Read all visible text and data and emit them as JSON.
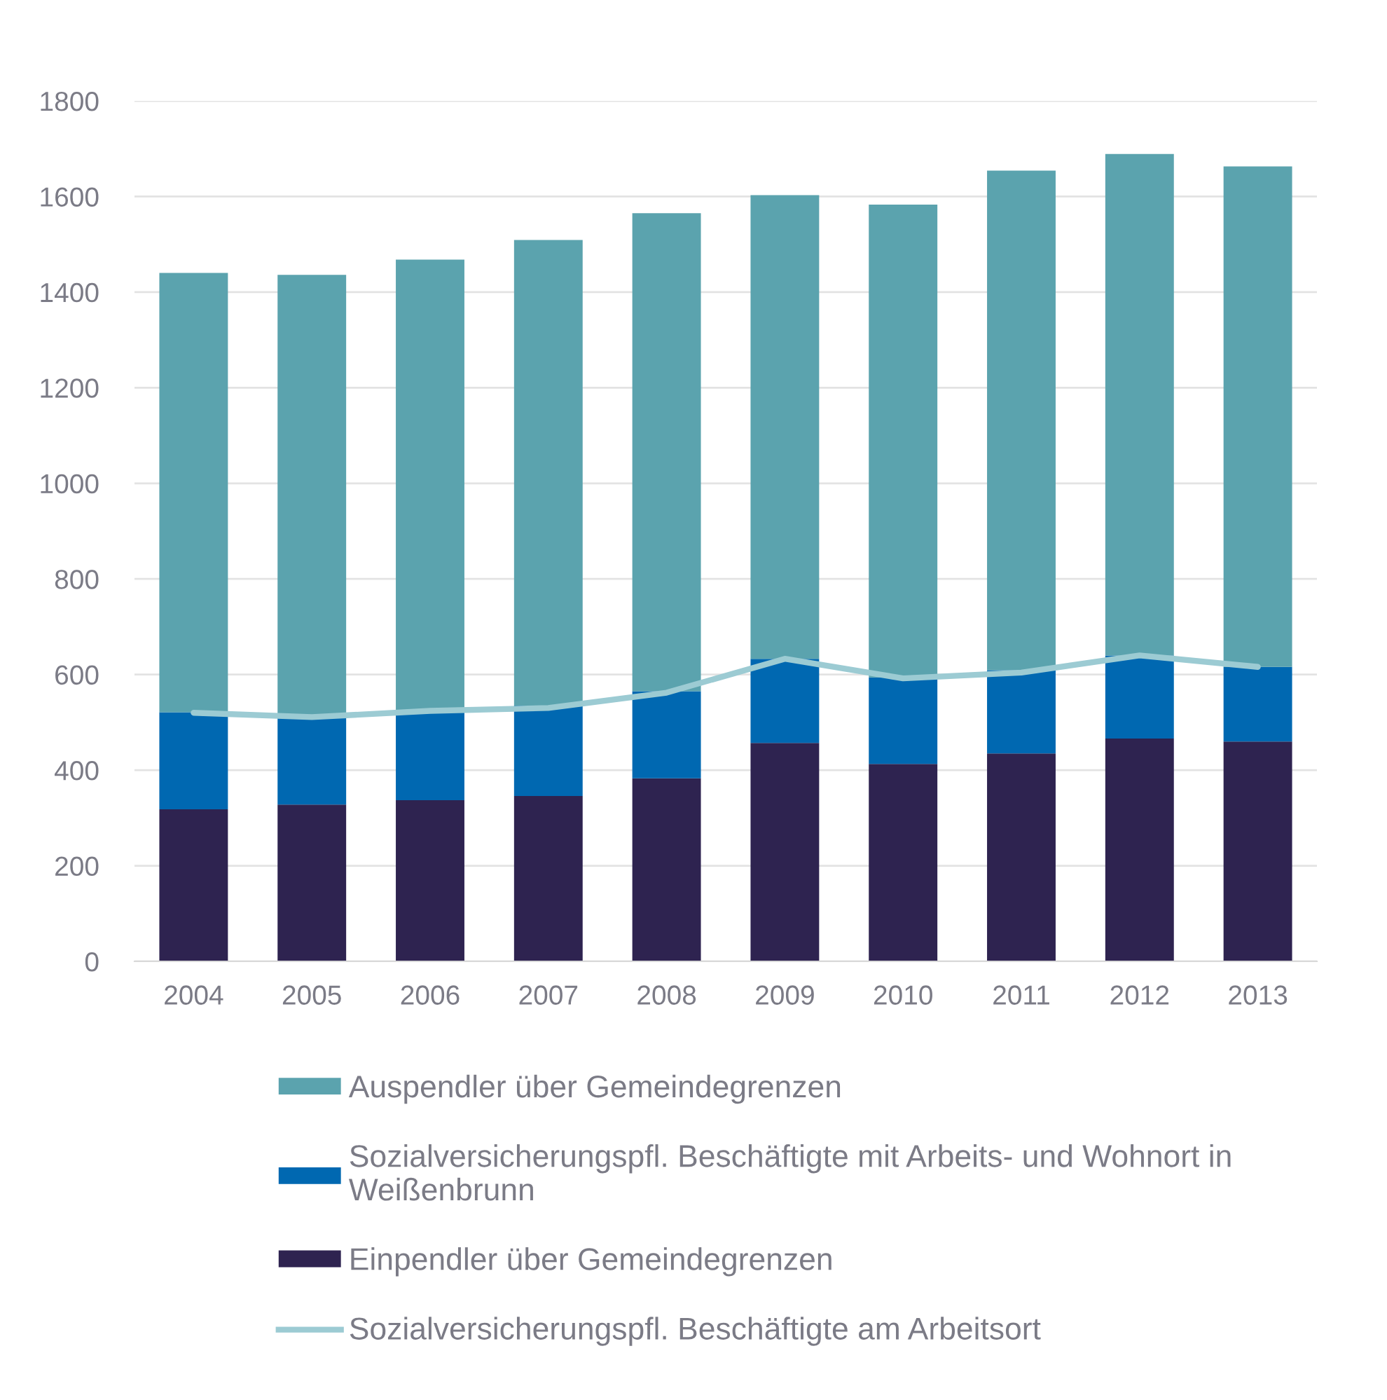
{
  "chart_data": {
    "type": "bar",
    "stacked": true,
    "categories": [
      "2004",
      "2005",
      "2006",
      "2007",
      "2008",
      "2009",
      "2010",
      "2011",
      "2012",
      "2013"
    ],
    "series": [
      {
        "name": "Einpendler über Gemeindegrenzen",
        "color": "#2e2350",
        "values": [
          318,
          328,
          337,
          346,
          383,
          457,
          413,
          435,
          466,
          460
        ]
      },
      {
        "name": "Sozialversicherungspfl. Beschäftigte mit Arbeits- und Wohnort in Weißenbrunn",
        "color": "#0068b1",
        "values": [
          203,
          184,
          189,
          189,
          182,
          176,
          181,
          174,
          174,
          156
        ]
      },
      {
        "name": "Auspendler über Gemeindegrenzen",
        "color": "#5ba3ae",
        "values": [
          919,
          924,
          942,
          974,
          1000,
          970,
          989,
          1045,
          1049,
          1047
        ]
      },
      {
        "name": "Sozialversicherungspfl. Beschäftigte am Arbeitsort",
        "type": "line",
        "color": "#9ccbd3",
        "values": [
          520,
          511,
          524,
          530,
          562,
          633,
          592,
          604,
          640,
          616
        ]
      }
    ],
    "ylim": [
      0,
      1800
    ],
    "yticks": [
      0,
      200,
      400,
      600,
      800,
      1000,
      1200,
      1400,
      1600,
      1800
    ],
    "grid": "y",
    "legend": "bottom"
  }
}
